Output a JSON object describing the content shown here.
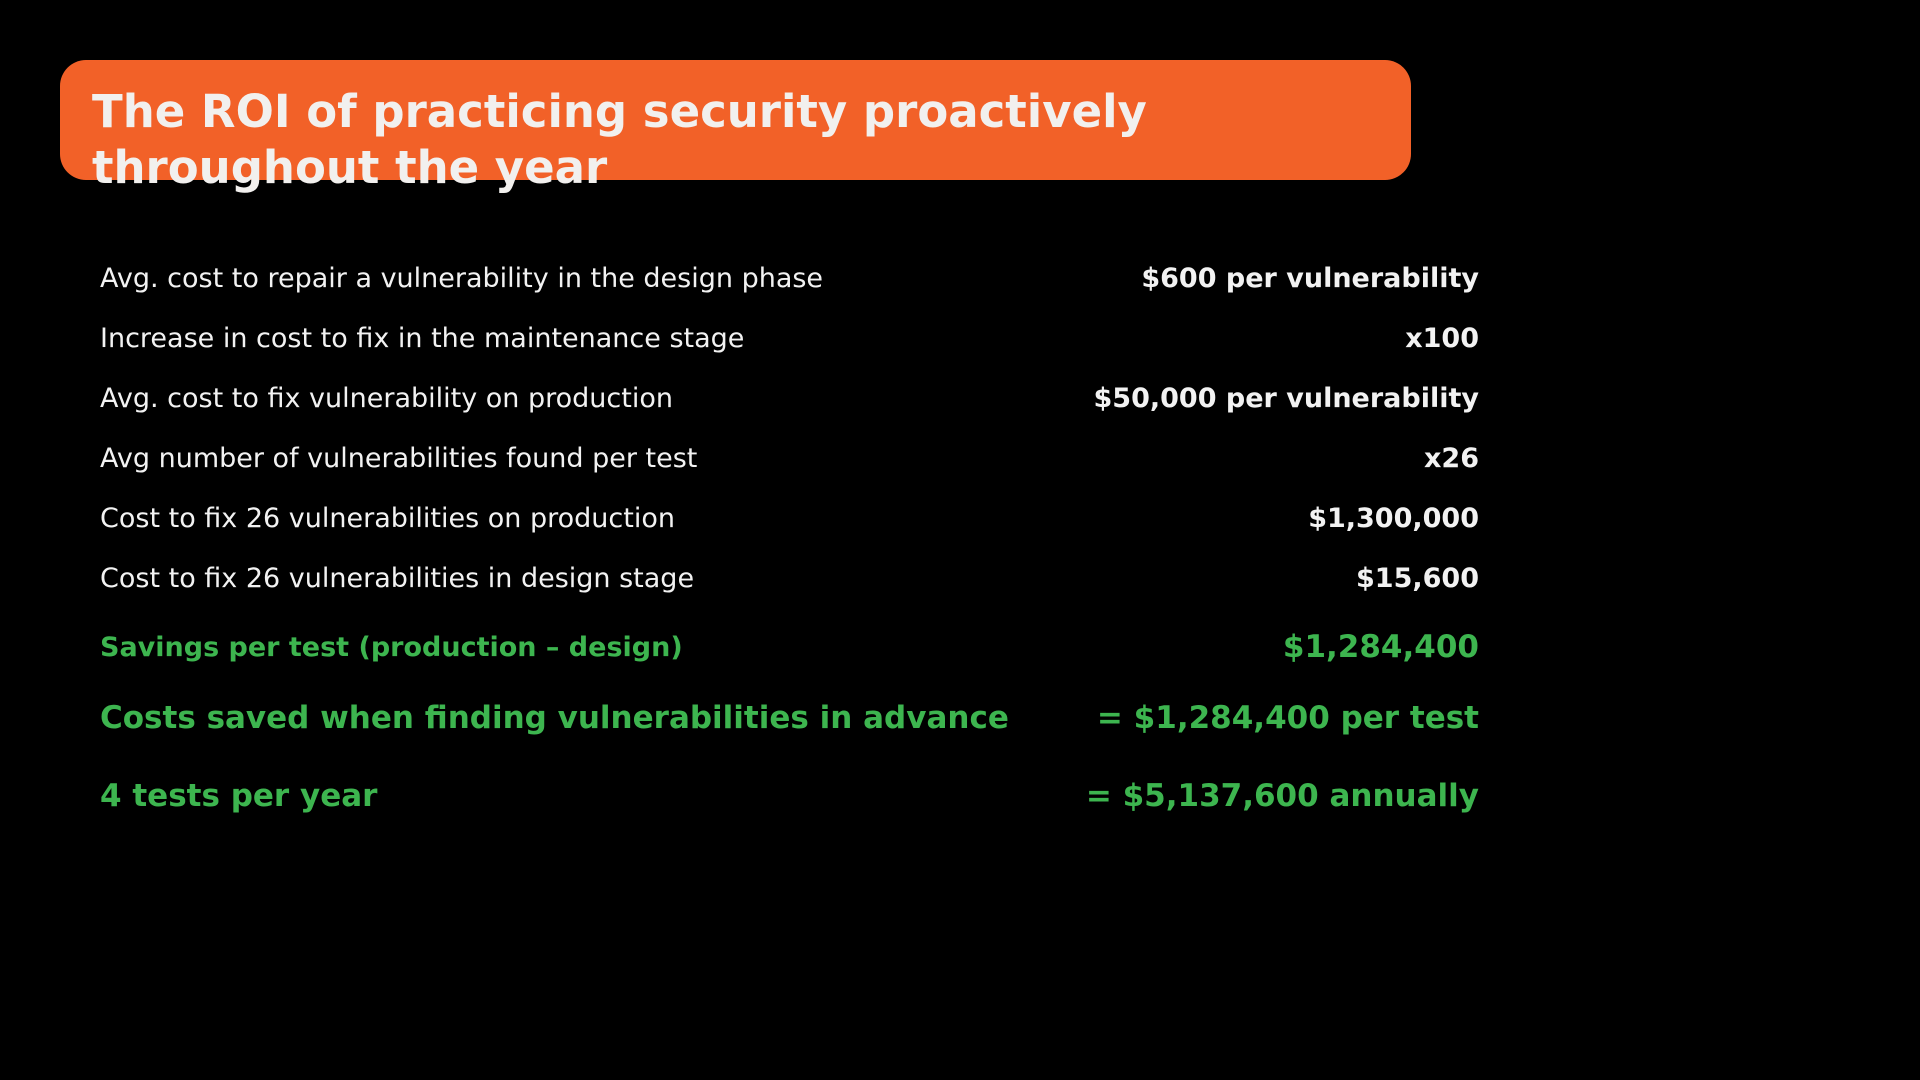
{
  "title": "The ROI of practicing security proactively throughout the year",
  "colors": {
    "header_bg": "#f26128",
    "accent_green": "#3db54f",
    "text": "#f2f2f2",
    "background": "#000000"
  },
  "rows": [
    {
      "label": "Avg. cost to repair a vulnerability in the design phase",
      "value": "$600 per vulnerability"
    },
    {
      "label": "Increase in cost to fix in the maintenance stage",
      "value": "x100"
    },
    {
      "label": "Avg. cost to fix vulnerability on production",
      "value": "$50,000 per vulnerability"
    },
    {
      "label": "Avg number of vulnerabilities found per test",
      "value": "x26"
    },
    {
      "label": "Cost to fix 26 vulnerabilities on production",
      "value": "$1,300,000"
    },
    {
      "label": "Cost to fix 26 vulnerabilities in design stage",
      "value": "$15,600"
    }
  ],
  "summary": [
    {
      "label": "Savings per test (production – design)",
      "value": "$1,284,400"
    },
    {
      "label": "Costs saved when finding vulnerabilities in advance",
      "value": "= $1,284,400 per test"
    },
    {
      "label": "4 tests per year",
      "value": "= $5,137,600 annually"
    }
  ]
}
